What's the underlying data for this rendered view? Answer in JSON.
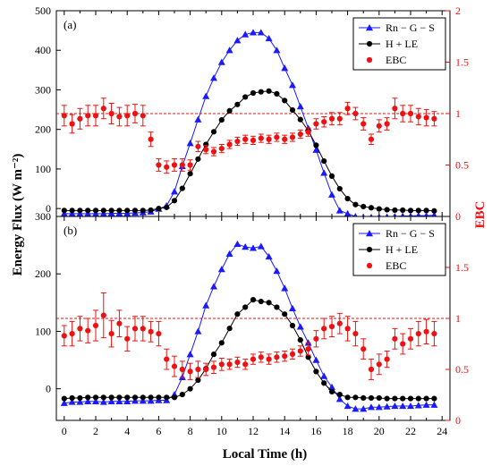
{
  "figure": {
    "ylabel_left": "Energy Flux (W m⁻²)",
    "ylabel_right": "EBC",
    "xlabel": "Local Time (h)"
  },
  "colors": {
    "blue": "#1a1aff",
    "black": "#000000",
    "red": "#ee1111",
    "ref": "#ee1111"
  },
  "chart_data": [
    {
      "type": "line",
      "panel_label": "(a)",
      "x": [
        0,
        0.5,
        1,
        1.5,
        2,
        2.5,
        3,
        3.5,
        4,
        4.5,
        5,
        5.5,
        6,
        6.5,
        7,
        7.5,
        8,
        8.5,
        9,
        9.5,
        10,
        10.5,
        11,
        11.5,
        12,
        12.5,
        13,
        13.5,
        14,
        14.5,
        15,
        15.5,
        16,
        16.5,
        17,
        17.5,
        18,
        18.5,
        19,
        19.5,
        20,
        20.5,
        21,
        21.5,
        22,
        22.5,
        23,
        23.5
      ],
      "xlim": [
        -0.5,
        24.5
      ],
      "xticks": [
        0,
        2,
        4,
        6,
        8,
        10,
        12,
        14,
        16,
        18,
        20,
        22,
        24
      ],
      "ylim_left": [
        -20,
        500
      ],
      "yticks_left": [
        0,
        100,
        200,
        300,
        400,
        500
      ],
      "ylim_right": [
        0,
        2
      ],
      "yticks_right": [
        0,
        0.5,
        1,
        1.5,
        2
      ],
      "ref_line_right": 1,
      "legend": [
        "Rn − G − S",
        "H + LE",
        "EBC"
      ],
      "series": [
        {
          "name": "Rn − G − S",
          "axis": "left",
          "marker": "triangle",
          "values": [
            -13,
            -13,
            -13,
            -13,
            -13,
            -13,
            -12,
            -12,
            -12,
            -11,
            -10,
            -8,
            -1,
            7,
            43,
            107,
            165,
            225,
            284,
            330,
            370,
            400,
            425,
            440,
            445,
            445,
            430,
            400,
            355,
            312,
            258,
            203,
            148,
            90,
            35,
            -5,
            -13,
            -20,
            -22,
            -22,
            -21,
            -21,
            -20,
            -19,
            -19,
            -18,
            -18,
            -17
          ]
        },
        {
          "name": "H + LE",
          "axis": "left",
          "marker": "circle",
          "values": [
            -5,
            -5,
            -5,
            -5,
            -5,
            -5,
            -5,
            -5,
            -5,
            -5,
            -5,
            -4,
            0,
            3,
            20,
            51,
            88,
            125,
            162,
            194,
            224,
            247,
            263,
            282,
            292,
            295,
            297,
            290,
            273,
            249,
            225,
            197,
            160,
            120,
            82,
            50,
            25,
            10,
            5,
            2,
            -1,
            -3,
            -4,
            -4,
            -5,
            -5,
            -5,
            -6
          ]
        },
        {
          "name": "EBC",
          "axis": "right",
          "marker": "circle",
          "values": [
            0.98,
            0.9,
            0.95,
            0.98,
            0.98,
            1.05,
            1.0,
            0.97,
            0.98,
            1.0,
            0.98,
            0.75,
            0.5,
            0.48,
            0.5,
            0.5,
            0.5,
            0.68,
            0.65,
            0.63,
            0.66,
            0.7,
            0.73,
            0.75,
            0.74,
            0.76,
            0.75,
            0.77,
            0.75,
            0.77,
            0.8,
            0.82,
            0.9,
            0.92,
            0.95,
            0.95,
            1.05,
            1.0,
            0.9,
            0.75,
            0.88,
            0.9,
            1.05,
            1.0,
            1.0,
            0.97,
            0.96,
            0.95
          ],
          "errors": [
            0.1,
            0.09,
            0.1,
            0.1,
            0.1,
            0.1,
            0.1,
            0.09,
            0.1,
            0.09,
            0.1,
            0.07,
            0.06,
            0.06,
            0.06,
            0.06,
            0.05,
            0.05,
            0.04,
            0.04,
            0.04,
            0.04,
            0.04,
            0.04,
            0.04,
            0.04,
            0.04,
            0.04,
            0.04,
            0.04,
            0.04,
            0.04,
            0.05,
            0.05,
            0.06,
            0.06,
            0.06,
            0.06,
            0.06,
            0.05,
            0.06,
            0.06,
            0.1,
            0.08,
            0.08,
            0.08,
            0.08,
            0.07
          ]
        }
      ]
    },
    {
      "type": "line",
      "panel_label": "(b)",
      "x": [
        0,
        0.5,
        1,
        1.5,
        2,
        2.5,
        3,
        3.5,
        4,
        4.5,
        5,
        5.5,
        6,
        6.5,
        7,
        7.5,
        8,
        8.5,
        9,
        9.5,
        10,
        10.5,
        11,
        11.5,
        12,
        12.5,
        13,
        13.5,
        14,
        14.5,
        15,
        15.5,
        16,
        16.5,
        17,
        17.5,
        18,
        18.5,
        19,
        19.5,
        20,
        20.5,
        21,
        21.5,
        22,
        22.5,
        23,
        23.5
      ],
      "xlim": [
        -0.5,
        24.5
      ],
      "xticks": [
        0,
        2,
        4,
        6,
        8,
        10,
        12,
        14,
        16,
        18,
        20,
        22,
        24
      ],
      "ylim_left": [
        -55,
        300
      ],
      "yticks_left": [
        0,
        100,
        200,
        300
      ],
      "ylim_right": [
        0,
        2
      ],
      "yticks_right": [
        0,
        0.5,
        1,
        1.5
      ],
      "ref_line_right": 1,
      "legend": [
        "Rn − G − S",
        "H + LE",
        "EBC"
      ],
      "series": [
        {
          "name": "Rn − G − S",
          "axis": "left",
          "marker": "triangle",
          "values": [
            -25,
            -23,
            -23,
            -22,
            -22,
            -23,
            -22,
            -22,
            -22,
            -21,
            -21,
            -21,
            -20,
            -20,
            -10,
            20,
            60,
            100,
            145,
            178,
            208,
            235,
            252,
            247,
            245,
            248,
            230,
            205,
            175,
            140,
            108,
            80,
            50,
            22,
            3,
            -18,
            -30,
            -35,
            -35,
            -32,
            -32,
            -31,
            -30,
            -30,
            -30,
            -29,
            -28,
            -28
          ]
        },
        {
          "name": "H + LE",
          "axis": "left",
          "marker": "circle",
          "values": [
            -17,
            -16,
            -16,
            -15,
            -15,
            -15,
            -15,
            -15,
            -15,
            -15,
            -15,
            -15,
            -15,
            -15,
            -15,
            -10,
            0,
            15,
            35,
            60,
            80,
            105,
            130,
            142,
            155,
            152,
            150,
            142,
            130,
            110,
            85,
            55,
            30,
            10,
            -5,
            -10,
            -15,
            -15,
            -16,
            -16,
            -16,
            -17,
            -17,
            -17,
            -17,
            -17,
            -17,
            -17
          ]
        },
        {
          "name": "EBC",
          "axis": "right",
          "marker": "circle",
          "values": [
            0.83,
            0.85,
            0.9,
            0.88,
            0.93,
            1.03,
            0.85,
            0.95,
            0.8,
            0.9,
            0.9,
            0.87,
            0.85,
            0.6,
            0.53,
            0.5,
            0.48,
            0.5,
            0.5,
            0.52,
            0.55,
            0.55,
            0.57,
            0.55,
            0.6,
            0.62,
            0.6,
            0.62,
            0.63,
            0.65,
            0.68,
            0.7,
            0.8,
            0.9,
            0.92,
            0.95,
            0.9,
            0.85,
            0.7,
            0.5,
            0.55,
            0.6,
            0.8,
            0.75,
            0.8,
            0.85,
            0.87,
            0.85
          ],
          "errors": [
            0.1,
            0.12,
            0.12,
            0.12,
            0.15,
            0.22,
            0.13,
            0.13,
            0.12,
            0.12,
            0.12,
            0.1,
            0.12,
            0.1,
            0.1,
            0.08,
            0.08,
            0.08,
            0.06,
            0.06,
            0.06,
            0.05,
            0.05,
            0.05,
            0.05,
            0.05,
            0.05,
            0.05,
            0.05,
            0.05,
            0.05,
            0.06,
            0.08,
            0.1,
            0.1,
            0.1,
            0.12,
            0.12,
            0.1,
            0.1,
            0.1,
            0.08,
            0.1,
            0.1,
            0.1,
            0.12,
            0.12,
            0.12
          ]
        }
      ]
    }
  ]
}
